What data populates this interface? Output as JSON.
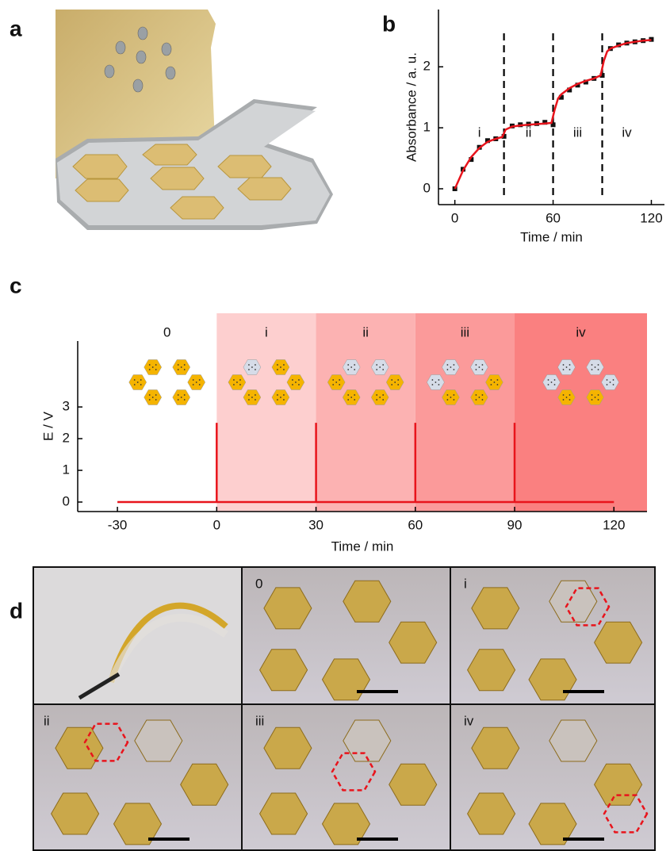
{
  "panel_labels": [
    "a",
    "b",
    "c",
    "d"
  ],
  "photos": {
    "labels": [
      "0",
      "i",
      "ii",
      "iii",
      "iv"
    ]
  },
  "chart_data": [
    {
      "type": "line",
      "xlabel": "Time / min",
      "ylabel": "Absorbance / a. u.",
      "xlim": [
        -10,
        128
      ],
      "ylim": [
        -0.26,
        2.94
      ],
      "xticks": [
        0,
        60,
        120
      ],
      "yticks": [
        0,
        1,
        2
      ],
      "vlines": [
        30,
        60,
        90
      ],
      "region_labels": [
        "i",
        "ii",
        "iii",
        "iv"
      ],
      "series": [
        {
          "style": "markers",
          "color": "#111111",
          "x": [
            0,
            5,
            10,
            15,
            20,
            25,
            30,
            35,
            40,
            45,
            50,
            55,
            60,
            65,
            70,
            75,
            80,
            85,
            90,
            95,
            100,
            105,
            110,
            115,
            120
          ],
          "values": [
            0.0,
            0.32,
            0.48,
            0.68,
            0.79,
            0.82,
            0.86,
            1.03,
            1.05,
            1.06,
            1.07,
            1.09,
            1.05,
            1.5,
            1.62,
            1.7,
            1.75,
            1.81,
            1.86,
            2.3,
            2.36,
            2.39,
            2.41,
            2.43,
            2.45
          ]
        },
        {
          "style": "line",
          "color": "#e8141c",
          "x": [
            0,
            5,
            10,
            15,
            20,
            25,
            29,
            31,
            35,
            40,
            45,
            50,
            55,
            59,
            61,
            63,
            65,
            70,
            75,
            80,
            85,
            89,
            91,
            93,
            95,
            100,
            105,
            110,
            115,
            120
          ],
          "values": [
            0.0,
            0.3,
            0.52,
            0.67,
            0.77,
            0.82,
            0.85,
            0.97,
            1.02,
            1.04,
            1.05,
            1.06,
            1.07,
            1.08,
            1.3,
            1.48,
            1.55,
            1.65,
            1.72,
            1.77,
            1.81,
            1.86,
            2.1,
            2.25,
            2.3,
            2.35,
            2.39,
            2.41,
            2.43,
            2.44
          ]
        }
      ]
    },
    {
      "type": "line",
      "xlabel": "Time / min",
      "ylabel": "E / V",
      "xlim": [
        -42,
        130
      ],
      "ylim": [
        -0.3,
        5.08
      ],
      "xticks": [
        -30,
        0,
        30,
        60,
        90,
        120
      ],
      "yticks": [
        0,
        1,
        2,
        3
      ],
      "regions": [
        {
          "label": "0",
          "start": -30,
          "end": 0,
          "color": "#ffffff"
        },
        {
          "label": "i",
          "start": 0,
          "end": 30,
          "color": "#fdcfcf"
        },
        {
          "label": "ii",
          "start": 30,
          "end": 60,
          "color": "#fcb2b2"
        },
        {
          "label": "iii",
          "start": 60,
          "end": 90,
          "color": "#fb9a9a"
        },
        {
          "label": "iv",
          "start": 90,
          "end": 130,
          "color": "#fa8080"
        }
      ],
      "series": [
        {
          "style": "line",
          "color": "#e8141c",
          "x": [
            -30,
            0,
            0,
            0,
            30,
            30,
            30,
            60,
            60,
            60,
            90,
            90,
            90,
            120
          ],
          "values": [
            0,
            0,
            2.5,
            0,
            0,
            2.5,
            0,
            0,
            2.5,
            0,
            0,
            2.5,
            0,
            0
          ]
        }
      ]
    }
  ]
}
